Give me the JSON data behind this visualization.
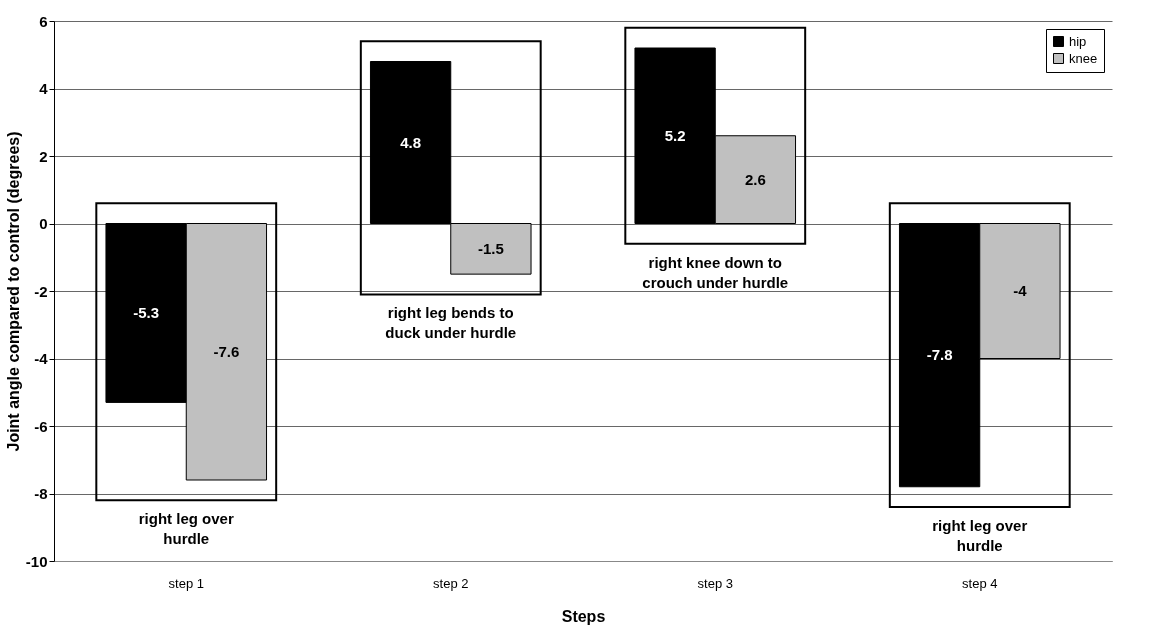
{
  "chart_data": {
    "type": "bar",
    "xlabel": "Steps",
    "ylabel": "Joint angle compared to control (degrees)",
    "categories": [
      "step 1",
      "step 2",
      "step 3",
      "step 4"
    ],
    "series": [
      {
        "name": "hip",
        "color": "#000000",
        "values": [
          -5.3,
          4.8,
          5.2,
          -7.8
        ]
      },
      {
        "name": "knee",
        "color": "#c0c0c0",
        "values": [
          -7.6,
          -1.5,
          2.6,
          -4
        ]
      }
    ],
    "ylim": [
      -10,
      6
    ],
    "yticks": [
      -10,
      -8,
      -6,
      -4,
      -2,
      0,
      2,
      4,
      6
    ],
    "grid": "y",
    "legend": "top right",
    "data_labels": true,
    "annotations": [
      "right leg over hurdle",
      "right leg bends to duck under hurdle",
      "right knee down to crouch under hurdle",
      "right leg over hurdle"
    ]
  }
}
